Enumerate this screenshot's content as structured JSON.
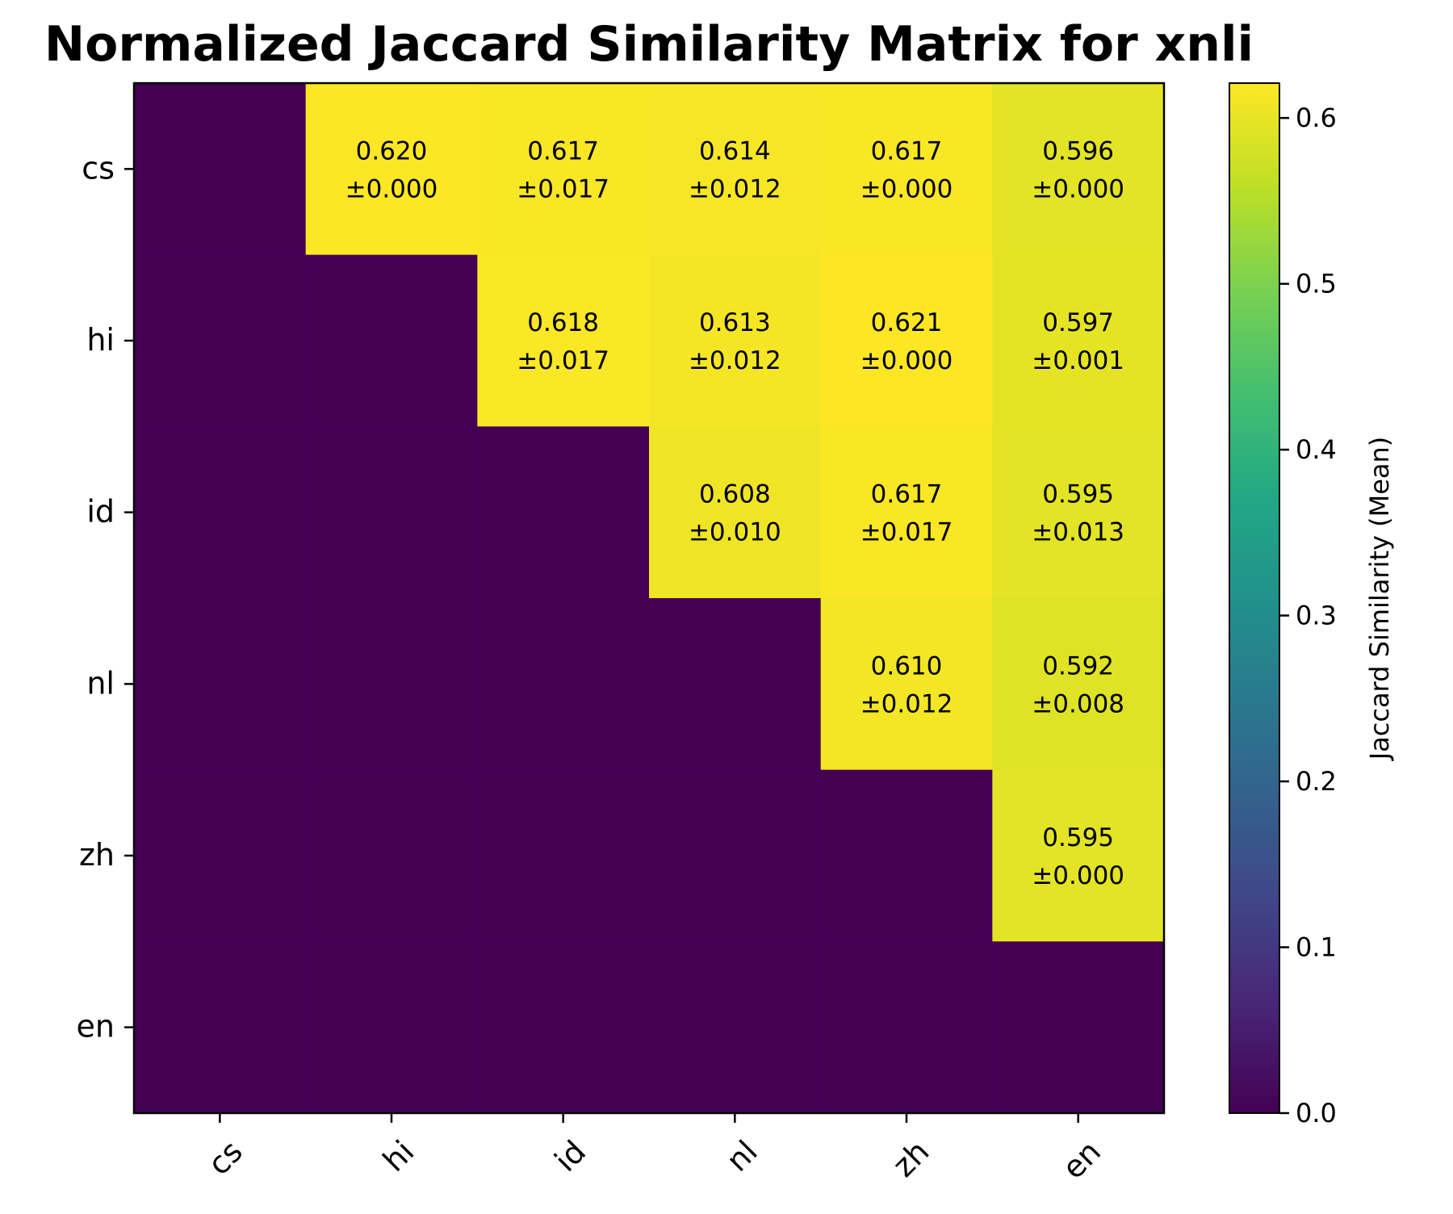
{
  "chart_data": {
    "type": "heatmap",
    "title": "Normalized Jaccard Similarity Matrix for xnli",
    "x_labels": [
      "cs",
      "hi",
      "id",
      "nl",
      "zh",
      "en"
    ],
    "y_labels": [
      "cs",
      "hi",
      "id",
      "nl",
      "zh",
      "en"
    ],
    "values": [
      [
        0,
        0.62,
        0.617,
        0.614,
        0.617,
        0.596
      ],
      [
        0,
        0,
        0.618,
        0.613,
        0.621,
        0.597
      ],
      [
        0,
        0,
        0,
        0.608,
        0.617,
        0.595
      ],
      [
        0,
        0,
        0,
        0,
        0.61,
        0.592
      ],
      [
        0,
        0,
        0,
        0,
        0,
        0.595
      ],
      [
        0,
        0,
        0,
        0,
        0,
        0
      ]
    ],
    "annotations": [
      [
        null,
        [
          "0.620",
          "±0.000"
        ],
        [
          "0.617",
          "±0.017"
        ],
        [
          "0.614",
          "±0.012"
        ],
        [
          "0.617",
          "±0.000"
        ],
        [
          "0.596",
          "±0.000"
        ]
      ],
      [
        null,
        null,
        [
          "0.618",
          "±0.017"
        ],
        [
          "0.613",
          "±0.012"
        ],
        [
          "0.621",
          "±0.000"
        ],
        [
          "0.597",
          "±0.001"
        ]
      ],
      [
        null,
        null,
        null,
        [
          "0.608",
          "±0.010"
        ],
        [
          "0.617",
          "±0.017"
        ],
        [
          "0.595",
          "±0.013"
        ]
      ],
      [
        null,
        null,
        null,
        null,
        [
          "0.610",
          "±0.012"
        ],
        [
          "0.592",
          "±0.008"
        ]
      ],
      [
        null,
        null,
        null,
        null,
        null,
        [
          "0.595",
          "±0.000"
        ]
      ],
      [
        null,
        null,
        null,
        null,
        null,
        null
      ]
    ],
    "colormap": "viridis",
    "colorbar": {
      "label": "Jaccard Similarity (Mean)",
      "range": [
        0.0,
        0.621
      ],
      "ticks": [
        "0.0",
        "0.1",
        "0.2",
        "0.3",
        "0.4",
        "0.5",
        "0.6"
      ]
    },
    "grid": false
  }
}
